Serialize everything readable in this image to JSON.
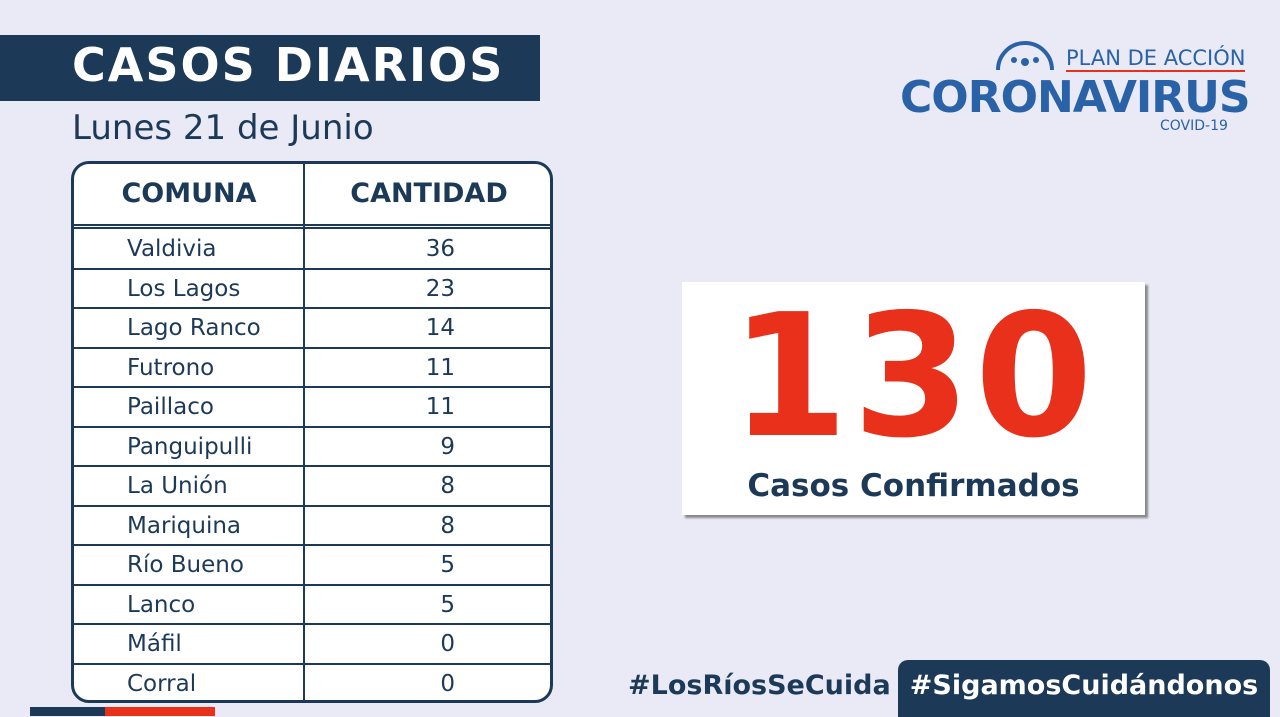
{
  "header": {
    "title": "CASOS DIARIOS",
    "date": "Lunes 21 de Junio"
  },
  "logo": {
    "top": "PLAN DE ACCIÓN",
    "main": "CORONAVIRUS",
    "sub": "COVID-19"
  },
  "table": {
    "columns": [
      "COMUNA",
      "CANTIDAD"
    ],
    "rows": [
      [
        "Valdivia",
        36
      ],
      [
        "Los Lagos",
        23
      ],
      [
        "Lago Ranco",
        14
      ],
      [
        "Futrono",
        11
      ],
      [
        "Paillaco",
        11
      ],
      [
        "Panguipulli",
        9
      ],
      [
        "La Unión",
        8
      ],
      [
        "Mariquina",
        8
      ],
      [
        "Río Bueno",
        5
      ],
      [
        "Lanco",
        5
      ],
      [
        "Máfil",
        0
      ],
      [
        "Corral",
        0
      ]
    ]
  },
  "total": {
    "value": 130,
    "label": "Casos Confirmados"
  },
  "hashtags": [
    "#LosRíosSeCuida",
    "#SigamosCuidándonos"
  ]
}
